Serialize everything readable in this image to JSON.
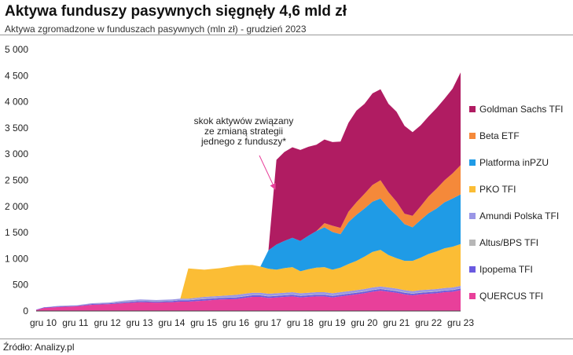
{
  "header": {
    "title": "Aktywa funduszy pasywnych sięgnęły 4,6 mld zł",
    "subtitle": "Aktywa zgromadzone w funduszach pasywnych (mln zł) -  grudzień 2023"
  },
  "footer": {
    "source": "Źródło: Analizy.pl"
  },
  "chart_data": {
    "type": "area",
    "stacked": true,
    "title": "Aktywa funduszy pasywnych sięgnęły 4,6 mld zł",
    "subtitle": "Aktywa zgromadzone w funduszach pasywnych (mln zł) -  grudzień 2023",
    "xlabel": "",
    "ylabel": "",
    "ylim": [
      0,
      5000
    ],
    "yticks": [
      0,
      500,
      1000,
      1500,
      2000,
      2500,
      3000,
      3500,
      4000,
      4500,
      5000
    ],
    "ytick_labels": [
      "0",
      "500",
      "1 000",
      "1 500",
      "2 000",
      "2 500",
      "3 000",
      "3 500",
      "4 000",
      "4 500",
      "5 000"
    ],
    "x_range": [
      "2010-09",
      "2023-12"
    ],
    "xticks": [
      "gru 10",
      "gru 11",
      "gru 12",
      "gru 13",
      "gru 14",
      "gru 15",
      "gru 16",
      "gru 17",
      "gru 18",
      "gru 19",
      "gru 20",
      "gru 21",
      "gru 22",
      "gru 23"
    ],
    "x": [
      "2010-09",
      "2010-12",
      "2011-06",
      "2011-12",
      "2012-06",
      "2012-12",
      "2013-06",
      "2013-12",
      "2014-06",
      "2014-12",
      "2015-03",
      "2015-06",
      "2015-12",
      "2016-06",
      "2016-12",
      "2017-03",
      "2017-06",
      "2017-09",
      "2017-12",
      "2018-03",
      "2018-06",
      "2018-09",
      "2018-12",
      "2019-03",
      "2019-06",
      "2019-09",
      "2019-12",
      "2020-03",
      "2020-06",
      "2020-09",
      "2020-12",
      "2021-03",
      "2021-06",
      "2021-09",
      "2021-12",
      "2022-03",
      "2022-06",
      "2022-09",
      "2022-12",
      "2023-03",
      "2023-06",
      "2023-09",
      "2023-12"
    ],
    "series": [
      {
        "name": "QUERCUS TFI",
        "color": "#e8409a",
        "values": [
          20,
          60,
          80,
          90,
          120,
          130,
          150,
          170,
          160,
          170,
          180,
          180,
          200,
          220,
          230,
          250,
          270,
          270,
          250,
          260,
          270,
          280,
          260,
          270,
          280,
          280,
          260,
          280,
          300,
          320,
          340,
          370,
          390,
          370,
          350,
          320,
          300,
          320,
          330,
          340,
          360,
          370,
          400
        ]
      },
      {
        "name": "Ipopema TFI",
        "color": "#6a5ae0",
        "values": [
          5,
          10,
          10,
          10,
          15,
          15,
          20,
          20,
          20,
          20,
          25,
          25,
          30,
          30,
          30,
          30,
          30,
          30,
          30,
          30,
          30,
          30,
          30,
          30,
          30,
          30,
          30,
          30,
          30,
          30,
          30,
          30,
          30,
          30,
          30,
          30,
          30,
          30,
          30,
          30,
          30,
          30,
          30
        ]
      },
      {
        "name": "Altus/BPS TFI",
        "color": "#b7b7b7",
        "values": [
          0,
          0,
          5,
          5,
          5,
          5,
          10,
          10,
          10,
          10,
          10,
          10,
          10,
          10,
          10,
          10,
          10,
          10,
          10,
          10,
          10,
          10,
          10,
          10,
          10,
          10,
          10,
          10,
          10,
          10,
          10,
          10,
          10,
          10,
          10,
          10,
          10,
          10,
          10,
          10,
          10,
          10,
          10
        ]
      },
      {
        "name": "Amundi Polska TFI",
        "color": "#9a96e6",
        "values": [
          0,
          0,
          5,
          5,
          10,
          10,
          20,
          20,
          20,
          20,
          20,
          20,
          30,
          30,
          40,
          40,
          40,
          40,
          40,
          40,
          40,
          40,
          40,
          40,
          40,
          40,
          40,
          40,
          40,
          40,
          40,
          40,
          40,
          40,
          40,
          40,
          40,
          40,
          40,
          40,
          40,
          40,
          40
        ]
      },
      {
        "name": "PKO TFI",
        "color": "#fbbd35",
        "values": [
          0,
          0,
          0,
          0,
          0,
          0,
          0,
          0,
          0,
          0,
          0,
          580,
          520,
          530,
          560,
          550,
          530,
          500,
          480,
          450,
          470,
          480,
          420,
          450,
          470,
          480,
          450,
          470,
          520,
          560,
          620,
          680,
          700,
          620,
          580,
          560,
          580,
          620,
          680,
          720,
          760,
          780,
          800
        ]
      },
      {
        "name": "Platforma inPZU",
        "color": "#1f9be6",
        "values": [
          0,
          0,
          0,
          0,
          0,
          0,
          0,
          0,
          0,
          0,
          0,
          0,
          0,
          0,
          0,
          0,
          0,
          0,
          350,
          480,
          520,
          560,
          580,
          640,
          700,
          760,
          720,
          640,
          800,
          880,
          920,
          960,
          980,
          900,
          820,
          700,
          640,
          720,
          780,
          820,
          880,
          920,
          950
        ]
      },
      {
        "name": "Beta ETF",
        "color": "#f5893a",
        "values": [
          0,
          0,
          0,
          0,
          0,
          0,
          0,
          0,
          0,
          0,
          0,
          0,
          0,
          0,
          0,
          0,
          0,
          0,
          0,
          0,
          0,
          0,
          0,
          0,
          0,
          80,
          120,
          120,
          200,
          240,
          280,
          320,
          350,
          300,
          260,
          200,
          220,
          260,
          320,
          380,
          420,
          480,
          560
        ]
      },
      {
        "name": "Goldman Sachs TFI",
        "color": "#b01c62",
        "values": [
          0,
          0,
          0,
          0,
          0,
          0,
          0,
          0,
          0,
          0,
          0,
          0,
          0,
          0,
          0,
          0,
          0,
          0,
          0,
          1620,
          1700,
          1730,
          1740,
          1700,
          1650,
          1600,
          1600,
          1650,
          1700,
          1750,
          1720,
          1750,
          1740,
          1690,
          1720,
          1680,
          1600,
          1550,
          1530,
          1540,
          1560,
          1620,
          1770
        ]
      }
    ],
    "legend_order": [
      "Goldman Sachs TFI",
      "Beta ETF",
      "Platforma inPZU",
      "PKO TFI",
      "Amundi Polska TFI",
      "Altus/BPS TFI",
      "Ipopema TFI",
      "QUERCUS TFI"
    ],
    "legend_position": "right",
    "grid": false,
    "annotation": {
      "lines": [
        "skok aktywów związany",
        "ze zmianą strategii",
        "jednego z funduszy*"
      ],
      "arrow_to": "2018-03"
    }
  }
}
